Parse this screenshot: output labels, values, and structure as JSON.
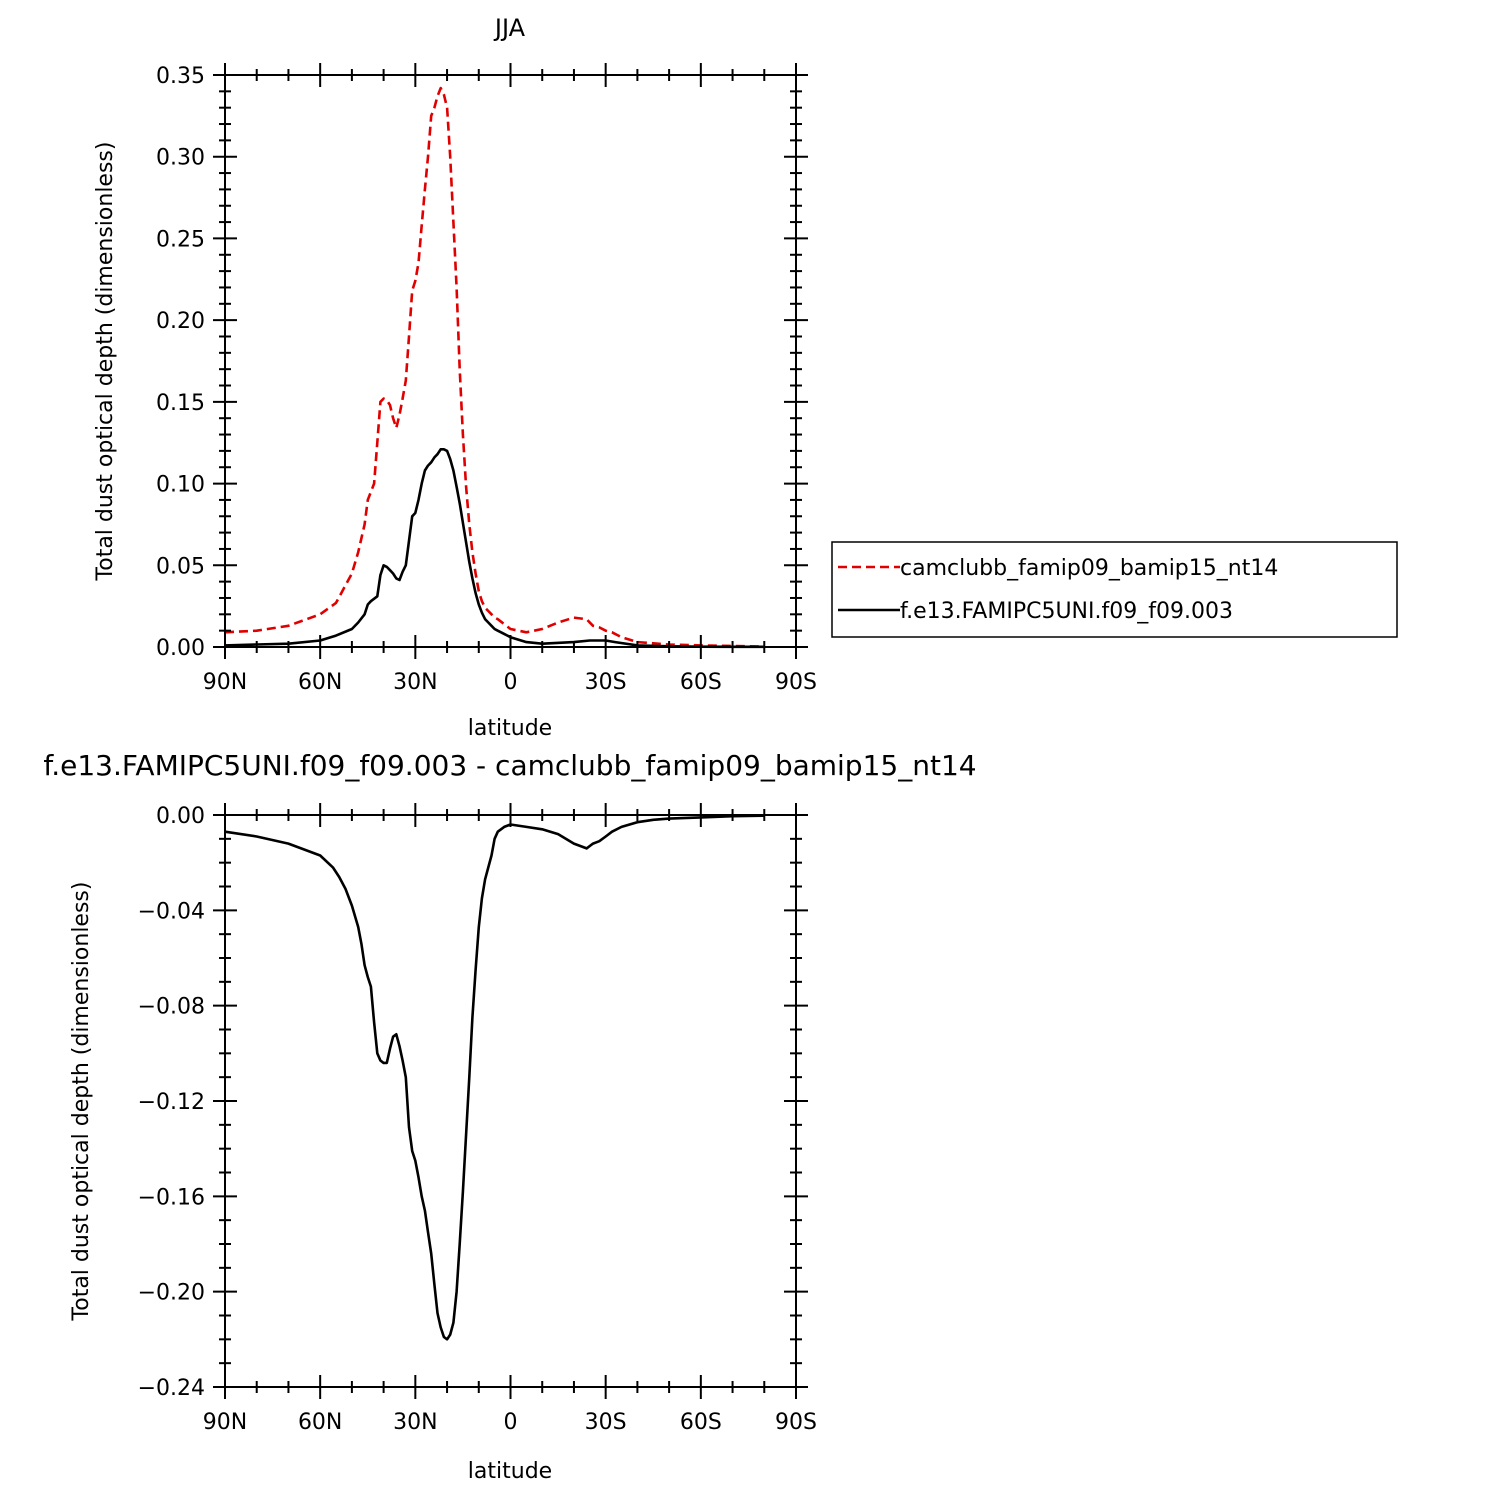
{
  "top_panel": {
    "title": "JJA"
  },
  "bottom_panel": {
    "title": "f.e13.FAMIPC5UNI.f09_f09.003 - camclubb_famip09_bamip15_nt14"
  },
  "legend": {
    "entries": [
      {
        "label": "camclubb_famip09_bamip15_nt14",
        "color": "#e00000",
        "dash": "dashed"
      },
      {
        "label": "f.e13.FAMIPC5UNI.f09_f09.003",
        "color": "#000000",
        "dash": "solid"
      }
    ]
  },
  "chart_data": [
    {
      "type": "line",
      "title": "JJA",
      "xlabel": "latitude",
      "ylabel": "Total dust optical depth (dimensionless)",
      "xlim": [
        90,
        -90
      ],
      "ylim": [
        0,
        0.35
      ],
      "xticks": [
        90,
        60,
        30,
        0,
        -30,
        -60,
        -90
      ],
      "xticklabels": [
        "90N",
        "60N",
        "30N",
        "0",
        "30S",
        "60S",
        "90S"
      ],
      "yticks": [
        0,
        0.05,
        0.1,
        0.15,
        0.2,
        0.25,
        0.3,
        0.35
      ],
      "yticklabels": [
        "0.00",
        "0.05",
        "0.10",
        "0.15",
        "0.20",
        "0.25",
        "0.30",
        "0.35"
      ],
      "legend_position": "right",
      "series": [
        {
          "name": "camclubb_famip09_bamip15_nt14",
          "color": "#e00000",
          "dash": "dashed",
          "x": [
            90,
            80,
            70,
            60,
            55,
            50,
            48,
            46,
            45,
            43,
            42,
            41,
            40,
            39,
            38,
            37,
            36,
            35,
            34,
            33,
            32,
            31,
            30,
            29,
            28,
            27,
            26,
            25,
            24,
            23,
            22,
            21,
            20,
            19,
            18,
            17,
            16,
            15,
            14,
            13,
            12,
            11,
            10,
            9,
            8,
            7,
            6,
            5,
            4,
            2,
            0,
            -5,
            -10,
            -15,
            -20,
            -24,
            -26,
            -28,
            -30,
            -32,
            -35,
            -40,
            -50,
            -60,
            -70,
            -80
          ],
          "y": [
            0.009,
            0.01,
            0.013,
            0.02,
            0.027,
            0.045,
            0.058,
            0.075,
            0.09,
            0.1,
            0.125,
            0.15,
            0.152,
            0.151,
            0.148,
            0.14,
            0.134,
            0.142,
            0.152,
            0.163,
            0.19,
            0.218,
            0.224,
            0.235,
            0.258,
            0.28,
            0.3,
            0.325,
            0.33,
            0.337,
            0.342,
            0.338,
            0.33,
            0.3,
            0.26,
            0.22,
            0.17,
            0.13,
            0.098,
            0.075,
            0.058,
            0.045,
            0.034,
            0.028,
            0.024,
            0.022,
            0.02,
            0.018,
            0.017,
            0.014,
            0.011,
            0.009,
            0.011,
            0.015,
            0.018,
            0.017,
            0.013,
            0.012,
            0.01,
            0.009,
            0.006,
            0.003,
            0.0015,
            0.001,
            0.0006,
            0.0003
          ]
        },
        {
          "name": "f.e13.FAMIPC5UNI.f09_f09.003",
          "color": "#000000",
          "dash": "solid",
          "x": [
            90,
            80,
            70,
            60,
            55,
            50,
            48,
            46,
            45,
            44,
            42,
            41,
            40,
            39,
            38,
            37,
            36,
            35,
            34,
            33,
            32,
            31,
            30,
            29,
            28,
            27,
            26,
            25,
            24,
            23,
            22,
            21,
            20,
            19,
            18,
            17,
            16,
            15,
            14,
            13,
            12,
            11,
            10,
            9,
            8,
            7,
            6,
            5,
            4,
            2,
            0,
            -5,
            -10,
            -20,
            -25,
            -28,
            -30,
            -33,
            -40,
            -50,
            -60,
            -70,
            -80
          ],
          "y": [
            0.001,
            0.0015,
            0.002,
            0.004,
            0.007,
            0.011,
            0.015,
            0.02,
            0.026,
            0.028,
            0.031,
            0.044,
            0.05,
            0.049,
            0.047,
            0.045,
            0.042,
            0.041,
            0.046,
            0.05,
            0.065,
            0.08,
            0.082,
            0.09,
            0.1,
            0.108,
            0.111,
            0.113,
            0.116,
            0.118,
            0.121,
            0.121,
            0.12,
            0.115,
            0.108,
            0.098,
            0.088,
            0.076,
            0.064,
            0.052,
            0.042,
            0.033,
            0.026,
            0.021,
            0.017,
            0.015,
            0.013,
            0.011,
            0.01,
            0.008,
            0.006,
            0.003,
            0.002,
            0.003,
            0.004,
            0.004,
            0.004,
            0.003,
            0.001,
            0.0004,
            0.0002,
            0.0001,
            0.0001
          ]
        }
      ]
    },
    {
      "type": "line",
      "title": "f.e13.FAMIPC5UNI.f09_f09.003 - camclubb_famip09_bamip15_nt14",
      "xlabel": "latitude",
      "ylabel": "Total dust optical depth (dimensionless)",
      "xlim": [
        90,
        -90
      ],
      "ylim": [
        -0.24,
        0
      ],
      "xticks": [
        90,
        60,
        30,
        0,
        -30,
        -60,
        -90
      ],
      "xticklabels": [
        "90N",
        "60N",
        "30N",
        "0",
        "30S",
        "60S",
        "90S"
      ],
      "yticks": [
        0,
        -0.04,
        -0.08,
        -0.12,
        -0.16,
        -0.2,
        -0.24
      ],
      "yticklabels": [
        "0.00",
        "−0.04",
        "−0.08",
        "−0.12",
        "−0.16",
        "−0.20",
        "−0.24"
      ],
      "series": [
        {
          "color": "#000000",
          "dash": "solid",
          "x": [
            90,
            80,
            70,
            60,
            56,
            54,
            52,
            50,
            48,
            47,
            46,
            45,
            44,
            43,
            42,
            41,
            40,
            39,
            38,
            37,
            36,
            35,
            34,
            33,
            32,
            31,
            30,
            29,
            28,
            27,
            26,
            25,
            24,
            23,
            22,
            21,
            20,
            19,
            18,
            17,
            16,
            15,
            14,
            13,
            12,
            11,
            10,
            9,
            8,
            7,
            6,
            5,
            4,
            2,
            0,
            -5,
            -10,
            -15,
            -20,
            -22,
            -24,
            -25,
            -26,
            -28,
            -30,
            -32,
            -35,
            -40,
            -45,
            -50,
            -60,
            -70,
            -80
          ],
          "y": [
            -0.007,
            -0.009,
            -0.012,
            -0.017,
            -0.022,
            -0.026,
            -0.031,
            -0.038,
            -0.047,
            -0.054,
            -0.063,
            -0.068,
            -0.072,
            -0.087,
            -0.1,
            -0.103,
            -0.104,
            -0.104,
            -0.098,
            -0.093,
            -0.092,
            -0.097,
            -0.103,
            -0.11,
            -0.131,
            -0.141,
            -0.145,
            -0.152,
            -0.16,
            -0.166,
            -0.175,
            -0.184,
            -0.197,
            -0.209,
            -0.215,
            -0.219,
            -0.22,
            -0.218,
            -0.213,
            -0.2,
            -0.18,
            -0.158,
            -0.134,
            -0.11,
            -0.085,
            -0.065,
            -0.047,
            -0.035,
            -0.027,
            -0.022,
            -0.017,
            -0.01,
            -0.007,
            -0.005,
            -0.004,
            -0.005,
            -0.006,
            -0.008,
            -0.012,
            -0.013,
            -0.014,
            -0.013,
            -0.012,
            -0.011,
            -0.009,
            -0.007,
            -0.005,
            -0.003,
            -0.002,
            -0.0015,
            -0.001,
            -0.0005,
            -0.0003
          ]
        }
      ]
    }
  ]
}
